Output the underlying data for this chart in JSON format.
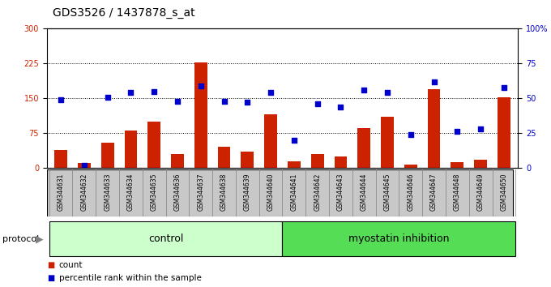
{
  "title": "GDS3526 / 1437878_s_at",
  "samples": [
    "GSM344631",
    "GSM344632",
    "GSM344633",
    "GSM344634",
    "GSM344635",
    "GSM344636",
    "GSM344637",
    "GSM344638",
    "GSM344639",
    "GSM344640",
    "GSM344641",
    "GSM344642",
    "GSM344643",
    "GSM344644",
    "GSM344645",
    "GSM344646",
    "GSM344647",
    "GSM344648",
    "GSM344649",
    "GSM344650"
  ],
  "counts": [
    38,
    10,
    55,
    80,
    100,
    30,
    228,
    45,
    35,
    115,
    15,
    30,
    25,
    85,
    110,
    8,
    170,
    12,
    18,
    152
  ],
  "percentile_ranks": [
    49,
    2,
    51,
    54,
    55,
    48,
    59,
    48,
    47,
    54,
    20,
    46,
    44,
    56,
    54,
    24,
    62,
    26,
    28,
    58
  ],
  "left_ylim": [
    0,
    300
  ],
  "right_ylim": [
    0,
    100
  ],
  "left_yticks": [
    0,
    75,
    150,
    225,
    300
  ],
  "right_yticks": [
    0,
    25,
    50,
    75,
    100
  ],
  "bar_color": "#cc2200",
  "dot_color": "#0000cc",
  "control_bg": "#ccffcc",
  "myostatin_bg": "#55dd55",
  "label_bg": "#c8c8c8",
  "protocol_label": "protocol",
  "control_label": "control",
  "myostatin_label": "myostatin inhibition",
  "legend_count_label": "count",
  "legend_pct_label": "percentile rank within the sample",
  "title_fontsize": 10,
  "tick_fontsize": 7,
  "axis_label_fontsize": 7,
  "group_label_fontsize": 9,
  "legend_fontsize": 7.5
}
